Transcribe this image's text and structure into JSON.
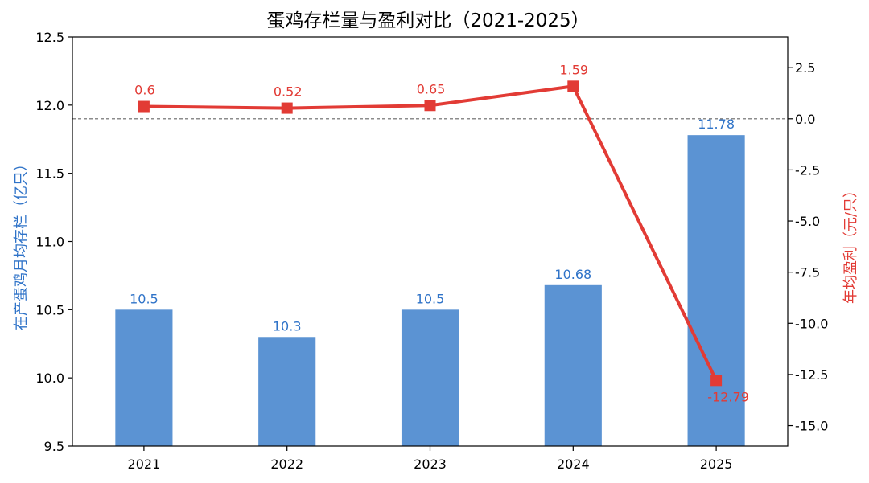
{
  "chart_data": {
    "type": "bar+line",
    "title": "蛋鸡存栏量与盈利对比（2021-2025）",
    "categories": [
      "2021",
      "2022",
      "2023",
      "2024",
      "2025"
    ],
    "series": [
      {
        "name": "在产蛋鸡月均存栏（亿只）",
        "type": "bar",
        "axis": "left",
        "values": [
          10.5,
          10.3,
          10.5,
          10.68,
          11.78
        ],
        "labels": [
          "10.5",
          "10.3",
          "10.5",
          "10.68",
          "11.78"
        ],
        "color": "#5b93d3",
        "label_color": "#2f73c8"
      },
      {
        "name": "年均盈利（元/只）",
        "type": "line",
        "axis": "right",
        "marker": "square",
        "values": [
          0.6,
          0.52,
          0.65,
          1.59,
          -12.79
        ],
        "labels": [
          "0.6",
          "0.52",
          "0.65",
          "1.59",
          "-12.79"
        ],
        "color": "#e23b35"
      }
    ],
    "y_left": {
      "label": "在产蛋鸡月均存栏（亿只）",
      "range": [
        9.5,
        12.5
      ],
      "ticks": [
        "9.5",
        "10.0",
        "10.5",
        "11.0",
        "11.5",
        "12.0",
        "12.5"
      ],
      "color": "#2f73c8"
    },
    "y_right": {
      "label": "年均盈利（元/只）",
      "range": [
        -16.0,
        4.0
      ],
      "ticks": [
        "-15.0",
        "-12.5",
        "-10.0",
        "-7.5",
        "-5.0",
        "-2.5",
        "0.0",
        "2.5"
      ],
      "color": "#e23b35"
    },
    "reference_line": {
      "axis": "right",
      "value": 0,
      "style": "dashed",
      "color": "#666666"
    },
    "grid": false,
    "legend": false
  }
}
